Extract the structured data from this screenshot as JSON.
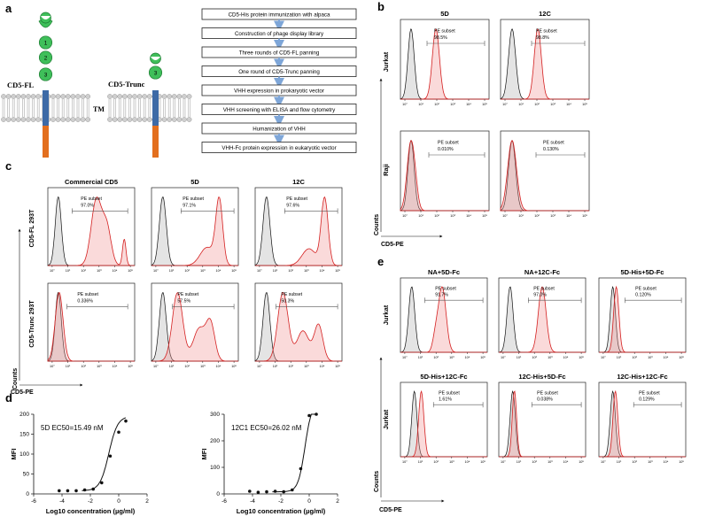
{
  "panel_letters": [
    "a",
    "b",
    "c",
    "d",
    "e"
  ],
  "panel_a": {
    "full_label": "CD5-FL",
    "trunc_label": "CD5-Trunc",
    "tm_label": "TM",
    "domains_full": [
      "1",
      "2",
      "3"
    ],
    "domains_trunc": [
      "3"
    ],
    "workflow": [
      "CD5-His protein immunization with alpaca",
      "Construction of phage display library",
      "Three rounds of CD5-FL panning",
      "One round of CD5-Trunc panning",
      "VHH expression in prokaryotic vector",
      "VHH screening with ELISA and flow cytometry",
      "Humanization of VHH",
      "VHH-Fc protein expression in eukaryotic vector"
    ]
  },
  "panel_b": {
    "col_titles": [
      "5D",
      "12C"
    ],
    "row_labels": [
      "Jurkat",
      "Raji"
    ],
    "pe_label": "PE subset",
    "values": [
      [
        "98.5%",
        "98.8%"
      ],
      [
        "0.010%",
        "0.130%"
      ]
    ],
    "y_axis_label": "Counts",
    "x_axis_label": "CD5-PE"
  },
  "panel_c": {
    "col_titles": [
      "Commercial CD5",
      "5D",
      "12C"
    ],
    "row_labels": [
      "CD5-FL 293T",
      "CD5-Trunc 293T"
    ],
    "pe_label": "PE subset",
    "values": [
      [
        "97.0%",
        "97.1%",
        "97.6%"
      ],
      [
        "0.336%",
        "57.5%",
        "50.3%"
      ]
    ],
    "y_axis_label": "Counts",
    "x_axis_label": "CD5-PE"
  },
  "panel_e": {
    "col_titles_top": [
      "NA+5D-Fc",
      "NA+12C-Fc",
      "5D-His+5D-Fc"
    ],
    "col_titles_bottom": [
      "5D-His+12C-Fc",
      "12C-His+5D-Fc",
      "12C-His+12C-Fc"
    ],
    "row_labels": [
      "Jurkat",
      "Jurkat"
    ],
    "pe_label": "PE subset",
    "values": [
      [
        "91.7%",
        "97.0%",
        "0.120%"
      ],
      [
        "1.61%",
        "0.038%",
        "0.129%"
      ]
    ],
    "y_axis_label": "Counts",
    "x_axis_label": "CD5-PE"
  },
  "hist_tick_labels": [
    "10°",
    "10¹",
    "10²",
    "10³",
    "10⁴",
    "10⁵"
  ],
  "chart_data": [
    {
      "type": "scatter",
      "title": "5D EC50=15.49 nM",
      "xlabel": "Log10 concentration (µg/ml)",
      "ylabel": "MFI",
      "xlim": [
        -6,
        2
      ],
      "ylim": [
        0,
        200
      ],
      "xticks": [
        "-6",
        "-4",
        "-2",
        "0",
        "2"
      ],
      "yticks": [
        "0",
        "50",
        "100",
        "150",
        "200"
      ],
      "x": [
        -4.2,
        -3.6,
        -3.0,
        -2.4,
        -1.8,
        -1.2,
        -0.6,
        0.0,
        0.5
      ],
      "y": [
        8,
        8,
        8,
        10,
        12,
        28,
        95,
        155,
        183
      ],
      "fit": {
        "bottom": 8,
        "top": 195,
        "logEC50": -0.7,
        "hill": 1.4
      }
    },
    {
      "type": "scatter",
      "title": "12C1 EC50=26.02 nM",
      "xlabel": "Log10 concentration (µg/ml)",
      "ylabel": "MFI",
      "xlim": [
        -6,
        2
      ],
      "ylim": [
        0,
        300
      ],
      "xticks": [
        "-6",
        "-4",
        "-2",
        "0",
        "2"
      ],
      "yticks": [
        "0",
        "100",
        "200",
        "300"
      ],
      "x": [
        -4.2,
        -3.6,
        -3.0,
        -2.4,
        -1.8,
        -1.2,
        -0.6,
        0.0,
        0.5
      ],
      "y": [
        10,
        6,
        8,
        10,
        8,
        15,
        95,
        295,
        300
      ],
      "fit": {
        "bottom": 8,
        "top": 345,
        "logEC50": -0.3,
        "hill": 1.8
      }
    }
  ]
}
